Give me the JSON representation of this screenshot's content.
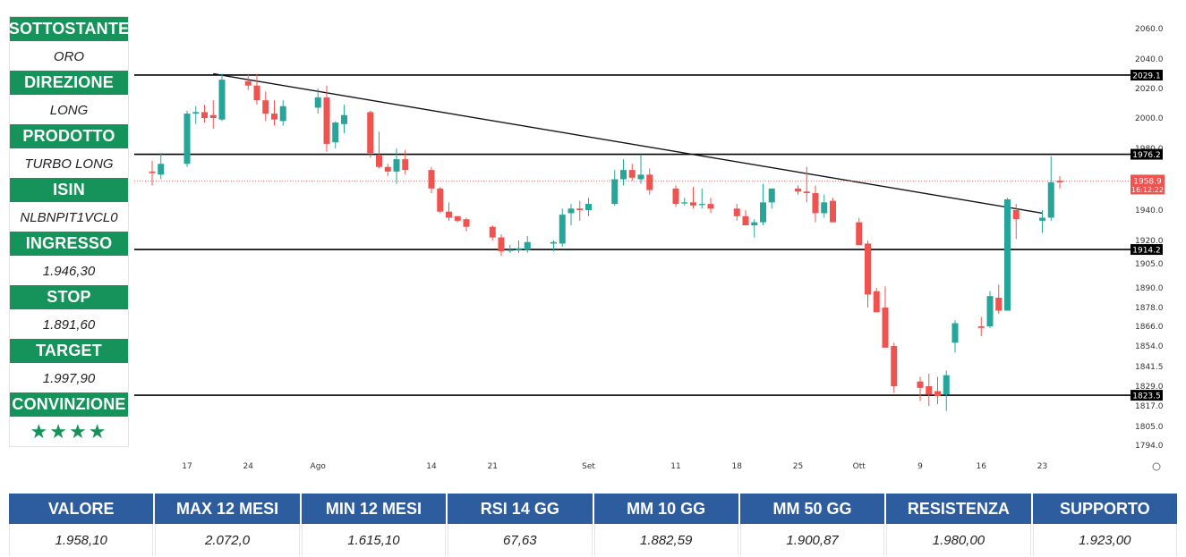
{
  "panel": {
    "sottostante_label": "SOTTOSTANTE",
    "sottostante": "ORO",
    "direzione_label": "DIREZIONE",
    "direzione": "LONG",
    "prodotto_label": "PRODOTTO",
    "prodotto": "TURBO LONG",
    "isin_label": "ISIN",
    "isin": "NLBNPIT1VCL0",
    "ingresso_label": "INGRESSO",
    "ingresso": "1.946,30",
    "stop_label": "STOP",
    "stop": "1.891,60",
    "target_label": "TARGET",
    "target": "1.997,90",
    "convinzione_label": "CONVINZIONE",
    "convinzione": "★★★★"
  },
  "stats": {
    "headers": [
      "VALORE",
      "MAX 12 MESI",
      "MIN 12 MESI",
      "RSI 14 GG",
      "MM 10 GG",
      "MM 50 GG",
      "RESISTENZA",
      "SUPPORTO"
    ],
    "values": [
      "1.958,10",
      "2.072,0",
      "1.615,10",
      "67,63",
      "1.882,59",
      "1.900,87",
      "1.980,00",
      "1.923,00"
    ]
  },
  "chart_data": {
    "type": "candlestick",
    "colors": {
      "up": "#26a69a",
      "down": "#ef5350",
      "line": "#000000",
      "price_tag": "#ef5350",
      "level_tag": "#000000"
    },
    "y_ticks": [
      "2060.0",
      "2040.0",
      "2020.0",
      "2000.0",
      "1980.0",
      "1940.0",
      "1920.0",
      "1905.0",
      "1890.0",
      "1878.0",
      "1866.0",
      "1854.0",
      "1841.5",
      "1829.0",
      "1817.0",
      "1805.0",
      "1794.0"
    ],
    "x_ticks": [
      "17",
      "24",
      "Ago",
      "14",
      "21",
      "Set",
      "11",
      "18",
      "25",
      "Ott",
      "9",
      "16",
      "23"
    ],
    "horizontal_levels": [
      {
        "label": "2029.1",
        "value": 2029.1
      },
      {
        "label": "1976.2",
        "value": 1976.2
      },
      {
        "label": "1914.2",
        "value": 1914.2
      },
      {
        "label": "1823.5",
        "value": 1823.5
      }
    ],
    "trendline": {
      "from_date": "Jul 20",
      "from_value": 2030,
      "to_date": "Oct 23",
      "to_value": 1938
    },
    "last_price": {
      "value": "1958.9",
      "countdown": "16:12:22"
    },
    "candles": [
      {
        "d": "Jul 13",
        "o": 1965,
        "h": 1972,
        "l": 1956,
        "c": 1964
      },
      {
        "d": "Jul 14",
        "o": 1963,
        "h": 1977,
        "l": 1960,
        "c": 1970
      },
      {
        "d": "Jul 17",
        "o": 1970,
        "h": 2005,
        "l": 1968,
        "c": 2003
      },
      {
        "d": "Jul 18",
        "o": 2003,
        "h": 2008,
        "l": 1996,
        "c": 2004
      },
      {
        "d": "Jul 19",
        "o": 2004,
        "h": 2009,
        "l": 1997,
        "c": 2000
      },
      {
        "d": "Jul 20",
        "o": 2002,
        "h": 2012,
        "l": 1993,
        "c": 2000
      },
      {
        "d": "Jul 21",
        "o": 1999,
        "h": 2030,
        "l": 1998,
        "c": 2026
      },
      {
        "d": "Jul 24",
        "o": 2025,
        "h": 2030,
        "l": 2019,
        "c": 2022
      },
      {
        "d": "Jul 25",
        "o": 2022,
        "h": 2030,
        "l": 2009,
        "c": 2012
      },
      {
        "d": "Jul 26",
        "o": 2012,
        "h": 2018,
        "l": 1998,
        "c": 2003
      },
      {
        "d": "Jul 27",
        "o": 2003,
        "h": 2012,
        "l": 1995,
        "c": 1999
      },
      {
        "d": "Jul 28",
        "o": 1998,
        "h": 2012,
        "l": 1995,
        "c": 2008
      },
      {
        "d": "Aug 1",
        "o": 2007,
        "h": 2020,
        "l": 2003,
        "c": 2014
      },
      {
        "d": "Aug 2",
        "o": 2014,
        "h": 2022,
        "l": 1978,
        "c": 1983
      },
      {
        "d": "Aug 3",
        "o": 1984,
        "h": 1998,
        "l": 1980,
        "c": 1997
      },
      {
        "d": "Aug 4",
        "o": 1996,
        "h": 2009,
        "l": 1990,
        "c": 2002
      },
      {
        "d": "Aug 7",
        "o": 2004,
        "h": 2005,
        "l": 1974,
        "c": 1977
      },
      {
        "d": "Aug 8",
        "o": 1976,
        "h": 1991,
        "l": 1967,
        "c": 1968
      },
      {
        "d": "Aug 9",
        "o": 1968,
        "h": 1970,
        "l": 1962,
        "c": 1965
      },
      {
        "d": "Aug 10",
        "o": 1965,
        "h": 1980,
        "l": 1957,
        "c": 1973
      },
      {
        "d": "Aug 11",
        "o": 1973,
        "h": 1979,
        "l": 1963,
        "c": 1966
      },
      {
        "d": "Aug 14",
        "o": 1966,
        "h": 1968,
        "l": 1951,
        "c": 1954
      },
      {
        "d": "Aug 15",
        "o": 1954,
        "h": 1955,
        "l": 1938,
        "c": 1939
      },
      {
        "d": "Aug 16",
        "o": 1939,
        "h": 1945,
        "l": 1933,
        "c": 1935
      },
      {
        "d": "Aug 17",
        "o": 1936,
        "h": 1936,
        "l": 1932,
        "c": 1933
      },
      {
        "d": "Aug 18",
        "o": 1934,
        "h": 1935,
        "l": 1926,
        "c": 1929
      },
      {
        "d": "Aug 21",
        "o": 1929,
        "h": 1930,
        "l": 1920,
        "c": 1922
      },
      {
        "d": "Aug 22",
        "o": 1922,
        "h": 1924,
        "l": 1910,
        "c": 1913
      },
      {
        "d": "Aug 23",
        "o": 1914,
        "h": 1917,
        "l": 1912,
        "c": 1914
      },
      {
        "d": "Aug 24",
        "o": 1914,
        "h": 1920,
        "l": 1912,
        "c": 1915
      },
      {
        "d": "Aug 25",
        "o": 1914,
        "h": 1923,
        "l": 1912,
        "c": 1919
      },
      {
        "d": "Aug 28",
        "o": 1918,
        "h": 1920,
        "l": 1913,
        "c": 1919
      },
      {
        "d": "Aug 29",
        "o": 1918,
        "h": 1941,
        "l": 1916,
        "c": 1937
      },
      {
        "d": "Aug 30",
        "o": 1938,
        "h": 1944,
        "l": 1930,
        "c": 1941
      },
      {
        "d": "Aug 31",
        "o": 1941,
        "h": 1946,
        "l": 1933,
        "c": 1940
      },
      {
        "d": "Sep 1",
        "o": 1940,
        "h": 1948,
        "l": 1936,
        "c": 1944
      },
      {
        "d": "Sep 4",
        "o": 1944,
        "h": 1966,
        "l": 1943,
        "c": 1960
      },
      {
        "d": "Sep 5",
        "o": 1960,
        "h": 1973,
        "l": 1956,
        "c": 1966
      },
      {
        "d": "Sep 6",
        "o": 1966,
        "h": 1970,
        "l": 1959,
        "c": 1961
      },
      {
        "d": "Sep 7",
        "o": 1960,
        "h": 1976,
        "l": 1957,
        "c": 1963
      },
      {
        "d": "Sep 8",
        "o": 1963,
        "h": 1967,
        "l": 1950,
        "c": 1953
      },
      {
        "d": "Sep 11",
        "o": 1954,
        "h": 1956,
        "l": 1942,
        "c": 1944
      },
      {
        "d": "Sep 12",
        "o": 1945,
        "h": 1948,
        "l": 1943,
        "c": 1945
      },
      {
        "d": "Sep 13",
        "o": 1945,
        "h": 1955,
        "l": 1941,
        "c": 1943
      },
      {
        "d": "Sep 14",
        "o": 1944,
        "h": 1954,
        "l": 1941,
        "c": 1944
      },
      {
        "d": "Sep 15",
        "o": 1944,
        "h": 1948,
        "l": 1938,
        "c": 1941
      },
      {
        "d": "Sep 18",
        "o": 1941,
        "h": 1944,
        "l": 1933,
        "c": 1936
      },
      {
        "d": "Sep 19",
        "o": 1936,
        "h": 1940,
        "l": 1930,
        "c": 1930
      },
      {
        "d": "Sep 20",
        "o": 1930,
        "h": 1934,
        "l": 1922,
        "c": 1932
      },
      {
        "d": "Sep 21",
        "o": 1932,
        "h": 1957,
        "l": 1930,
        "c": 1945
      },
      {
        "d": "Sep 22",
        "o": 1945,
        "h": 1954,
        "l": 1941,
        "c": 1954
      },
      {
        "d": "Sep 25",
        "o": 1954,
        "h": 1956,
        "l": 1950,
        "c": 1952
      },
      {
        "d": "Sep 26",
        "o": 1952,
        "h": 1968,
        "l": 1945,
        "c": 1951
      },
      {
        "d": "Sep 27",
        "o": 1951,
        "h": 1956,
        "l": 1932,
        "c": 1938
      },
      {
        "d": "Sep 28",
        "o": 1938,
        "h": 1950,
        "l": 1935,
        "c": 1945
      },
      {
        "d": "Sep 29",
        "o": 1946,
        "h": 1948,
        "l": 1932,
        "c": 1932
      },
      {
        "d": "Oct 2",
        "o": 1932,
        "h": 1935,
        "l": 1917,
        "c": 1917
      },
      {
        "d": "Oct 3",
        "o": 1918,
        "h": 1920,
        "l": 1878,
        "c": 1886
      },
      {
        "d": "Oct 4",
        "o": 1888,
        "h": 1890,
        "l": 1875,
        "c": 1875
      },
      {
        "d": "Oct 5",
        "o": 1878,
        "h": 1891,
        "l": 1853,
        "c": 1853
      },
      {
        "d": "Oct 6",
        "o": 1854,
        "h": 1856,
        "l": 1825,
        "c": 1829
      },
      {
        "d": "Oct 9",
        "o": 1832,
        "h": 1835,
        "l": 1820,
        "c": 1828
      },
      {
        "d": "Oct 10",
        "o": 1829,
        "h": 1837,
        "l": 1817,
        "c": 1824
      },
      {
        "d": "Oct 11",
        "o": 1826,
        "h": 1835,
        "l": 1818,
        "c": 1823
      },
      {
        "d": "Oct 12",
        "o": 1824,
        "h": 1839,
        "l": 1814,
        "c": 1836
      },
      {
        "d": "Oct 13",
        "o": 1856,
        "h": 1870,
        "l": 1850,
        "c": 1868
      },
      {
        "d": "Oct 16",
        "o": 1866,
        "h": 1872,
        "l": 1860,
        "c": 1865
      },
      {
        "d": "Oct 17",
        "o": 1866,
        "h": 1888,
        "l": 1865,
        "c": 1885
      },
      {
        "d": "Oct 18",
        "o": 1884,
        "h": 1892,
        "l": 1874,
        "c": 1876
      },
      {
        "d": "Oct 19",
        "o": 1876,
        "h": 1948,
        "l": 1876,
        "c": 1947
      },
      {
        "d": "Oct 20",
        "o": 1940,
        "h": 1944,
        "l": 1921,
        "c": 1934
      },
      {
        "d": "Oct 23",
        "o": 1933,
        "h": 1940,
        "l": 1925,
        "c": 1935
      },
      {
        "d": "Oct 24",
        "o": 1935,
        "h": 1975,
        "l": 1933,
        "c": 1958
      },
      {
        "d": "Oct 25",
        "o": 1959,
        "h": 1962,
        "l": 1954,
        "c": 1958
      }
    ]
  }
}
